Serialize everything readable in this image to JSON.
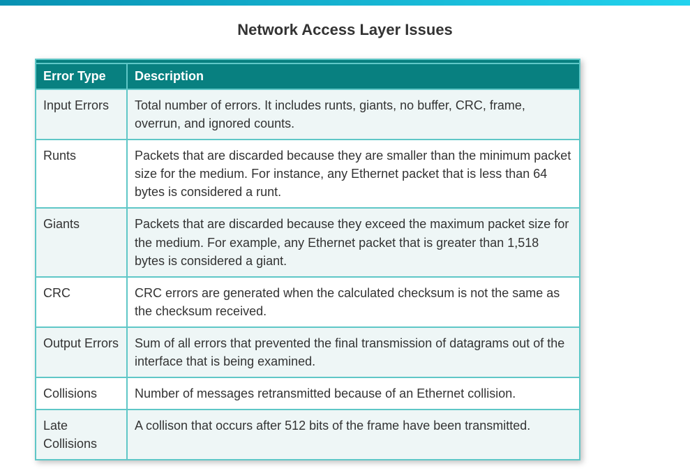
{
  "title": "Network Access Layer Issues",
  "table": {
    "headers": {
      "col1": "Error Type",
      "col2": "Description"
    },
    "rows": [
      {
        "type": "Input Errors",
        "desc": "Total number of errors. It includes runts, giants, no buffer, CRC, frame, overrun, and ignored counts."
      },
      {
        "type": "Runts",
        "desc": "Packets that are discarded because they are smaller than the minimum packet size for the medium. For instance, any Ethernet packet that is less than 64 bytes is considered a runt."
      },
      {
        "type": "Giants",
        "desc": "Packets that are discarded because they exceed the maximum packet size for the medium. For example, any Ethernet packet that is greater than 1,518 bytes is considered a giant."
      },
      {
        "type": "CRC",
        "desc": "CRC errors are generated when the calculated checksum is not the same as the checksum received."
      },
      {
        "type": "Output Errors",
        "desc": "Sum of all errors that prevented the final transmission of datagrams out of the interface that is being examined."
      },
      {
        "type": "Collisions",
        "desc": "Number of messages retransmitted because of an Ethernet collision."
      },
      {
        "type": "Late Collisions",
        "desc": "A collison that occurs after 512 bits of the frame have been transmitted."
      }
    ]
  },
  "colors": {
    "header_bg": "#088080",
    "border": "#5fc7c7",
    "row_alt_bg": "#eef6f6",
    "text": "#333333",
    "header_text": "#ffffff"
  }
}
